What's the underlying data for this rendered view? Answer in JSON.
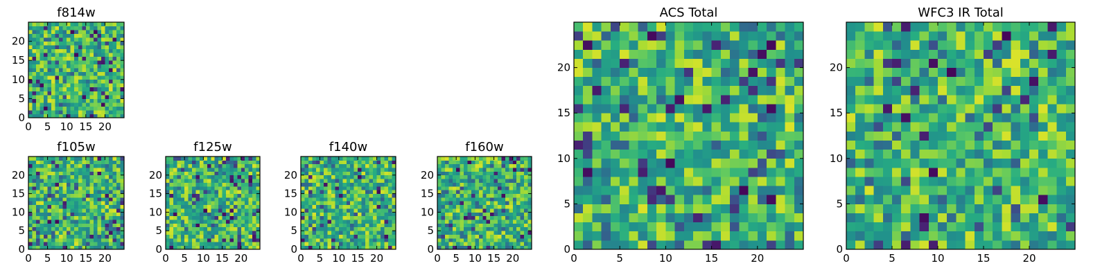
{
  "chart_data": [
    {
      "type": "heatmap",
      "title": "f814w",
      "colormap": "viridis",
      "rows": 25,
      "cols": 25,
      "seed": 11,
      "xlim": [
        0,
        25
      ],
      "ylim": [
        0,
        25
      ],
      "xticks": [
        0,
        5,
        10,
        15,
        20
      ],
      "yticks": [
        0,
        5,
        10,
        15,
        20
      ],
      "xtick_labels": [
        "0",
        "5",
        "10",
        "15",
        "20"
      ],
      "ytick_labels": [
        "0",
        "5",
        "10",
        "15",
        "20"
      ]
    },
    {
      "type": "heatmap",
      "title": "f105w",
      "colormap": "viridis",
      "rows": 25,
      "cols": 25,
      "seed": 23,
      "xlim": [
        0,
        25
      ],
      "ylim": [
        0,
        25
      ],
      "xticks": [
        0,
        5,
        10,
        15,
        20
      ],
      "yticks": [
        0,
        5,
        10,
        15,
        20
      ],
      "xtick_labels": [
        "0",
        "5",
        "10",
        "15",
        "20"
      ],
      "ytick_labels": [
        "0",
        "5",
        "10",
        "15",
        "20"
      ]
    },
    {
      "type": "heatmap",
      "title": "f125w",
      "colormap": "viridis",
      "rows": 25,
      "cols": 25,
      "seed": 37,
      "xlim": [
        0,
        25
      ],
      "ylim": [
        0,
        25
      ],
      "xticks": [
        0,
        5,
        10,
        15,
        20
      ],
      "yticks": [
        0,
        5,
        10,
        15,
        20
      ],
      "xtick_labels": [
        "0",
        "5",
        "10",
        "15",
        "20"
      ],
      "ytick_labels": [
        "0",
        "5",
        "10",
        "15",
        "20"
      ]
    },
    {
      "type": "heatmap",
      "title": "f140w",
      "colormap": "viridis",
      "rows": 25,
      "cols": 25,
      "seed": 41,
      "xlim": [
        0,
        25
      ],
      "ylim": [
        0,
        25
      ],
      "xticks": [
        0,
        5,
        10,
        15,
        20
      ],
      "yticks": [
        0,
        5,
        10,
        15,
        20
      ],
      "xtick_labels": [
        "0",
        "5",
        "10",
        "15",
        "20"
      ],
      "ytick_labels": [
        "0",
        "5",
        "10",
        "15",
        "20"
      ]
    },
    {
      "type": "heatmap",
      "title": "f160w",
      "colormap": "viridis",
      "rows": 25,
      "cols": 25,
      "seed": 53,
      "xlim": [
        0,
        25
      ],
      "ylim": [
        0,
        25
      ],
      "xticks": [
        0,
        5,
        10,
        15,
        20
      ],
      "yticks": [
        0,
        5,
        10,
        15,
        20
      ],
      "xtick_labels": [
        "0",
        "5",
        "10",
        "15",
        "20"
      ],
      "ytick_labels": [
        "0",
        "5",
        "10",
        "15",
        "20"
      ]
    },
    {
      "type": "heatmap",
      "title": "ACS Total",
      "colormap": "viridis",
      "rows": 25,
      "cols": 25,
      "seed": 67,
      "xlim": [
        0,
        25
      ],
      "ylim": [
        0,
        25
      ],
      "xticks": [
        0,
        5,
        10,
        15,
        20
      ],
      "yticks": [
        0,
        5,
        10,
        15,
        20
      ],
      "xtick_labels": [
        "0",
        "5",
        "10",
        "15",
        "20"
      ],
      "ytick_labels": [
        "0",
        "5",
        "10",
        "15",
        "20"
      ]
    },
    {
      "type": "heatmap",
      "title": "WFC3 IR Total",
      "colormap": "viridis",
      "rows": 25,
      "cols": 25,
      "seed": 79,
      "xlim": [
        0,
        25
      ],
      "ylim": [
        0,
        25
      ],
      "xticks": [
        0,
        5,
        10,
        15,
        20
      ],
      "yticks": [
        0,
        5,
        10,
        15,
        20
      ],
      "xtick_labels": [
        "0",
        "5",
        "10",
        "15",
        "20"
      ],
      "ytick_labels": [
        "0",
        "5",
        "10",
        "15",
        "20"
      ]
    }
  ]
}
